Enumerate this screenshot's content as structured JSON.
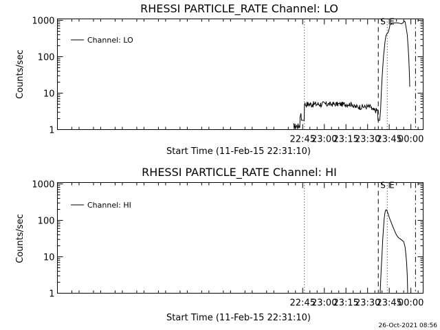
{
  "footer": {
    "timestamp": "26-Oct-2021 08:56"
  },
  "chart_data": [
    {
      "type": "line",
      "title": "RHESSI PARTICLE_RATE Channel: LO",
      "xlabel": "Start Time (11-Feb-15 22:31:10)",
      "ylabel": "Counts/sec",
      "yscale": "log",
      "ylim": [
        1,
        1000
      ],
      "xlim_minutes": [
        -245,
        8.5
      ],
      "x_ticks": [
        {
          "m": -75,
          "label": "22:45"
        },
        {
          "m": -60,
          "label": "23:00"
        },
        {
          "m": -45,
          "label": "23:15"
        },
        {
          "m": -30,
          "label": "23:30"
        },
        {
          "m": -15,
          "label": "23:45"
        },
        {
          "m": 0,
          "label": "00:00"
        }
      ],
      "y_ticks": [
        {
          "v": 1,
          "label": "1"
        },
        {
          "v": 10,
          "label": "10"
        },
        {
          "v": 100,
          "label": "100"
        },
        {
          "v": 1000,
          "label": "1000"
        }
      ],
      "legend": {
        "position": "top-left",
        "label": "Channel: LO"
      },
      "markers": [
        {
          "m": -73.8,
          "style": "dotted",
          "label": ""
        },
        {
          "m": -22.6,
          "style": "dashed",
          "label": "S"
        },
        {
          "m": -16.4,
          "style": "dotted",
          "label": "E"
        },
        {
          "m": 3.2,
          "style": "dashdot",
          "label": ""
        }
      ],
      "series": [
        {
          "name": "Channel: LO",
          "noise_segments": [
            {
              "from": -81.5,
              "to": -76.8,
              "vmin": 1,
              "vmax": 1.5,
              "step": 0.3
            },
            {
              "from": -73.8,
              "to": -58,
              "vmin": 4,
              "vmax": 6,
              "step": 0.35
            },
            {
              "from": -58,
              "to": -40,
              "vmin": 4.2,
              "vmax": 5.8,
              "step": 0.35
            },
            {
              "from": -40,
              "to": -27.2,
              "vmin": 3.5,
              "vmax": 5,
              "step": 0.35
            },
            {
              "from": -27.2,
              "to": -23,
              "vmin": 2.8,
              "vmax": 4,
              "step": 0.35
            }
          ],
          "points": [
            [
              -76.8,
              2.2
            ],
            [
              -76.2,
              2.8
            ],
            [
              -75.8,
              1.8
            ],
            [
              -74,
              1.8
            ],
            [
              -73.8,
              4.5
            ],
            [
              -23,
              3
            ],
            [
              -22.8,
              1.8
            ],
            [
              -21.6,
              1.8
            ],
            [
              -21,
              3.5
            ],
            [
              -20.5,
              10
            ],
            [
              -20,
              25
            ],
            [
              -19.5,
              50
            ],
            [
              -19,
              100
            ],
            [
              -18.5,
              150
            ],
            [
              -18,
              250
            ],
            [
              -17.3,
              380
            ],
            [
              -16.5,
              430
            ],
            [
              -16,
              450
            ],
            [
              -15.5,
              500
            ],
            [
              -15,
              600
            ],
            [
              -14.5,
              750
            ],
            [
              -13,
              850
            ],
            [
              -9,
              850
            ],
            [
              -6.5,
              800
            ],
            [
              -5.5,
              850
            ],
            [
              -4.5,
              950
            ],
            [
              -4,
              900
            ],
            [
              -3.5,
              700
            ],
            [
              -2.5,
              400
            ],
            [
              -2,
              200
            ],
            [
              -1.5,
              100
            ],
            [
              -1,
              30
            ],
            [
              -0.8,
              15
            ]
          ]
        }
      ]
    },
    {
      "type": "line",
      "title": "RHESSI PARTICLE_RATE Channel: HI",
      "xlabel": "Start Time (11-Feb-15 22:31:10)",
      "ylabel": "Counts/sec",
      "yscale": "log",
      "ylim": [
        1,
        1000
      ],
      "xlim_minutes": [
        -245,
        8.5
      ],
      "x_ticks": [
        {
          "m": -75,
          "label": "22:45"
        },
        {
          "m": -60,
          "label": "23:00"
        },
        {
          "m": -45,
          "label": "23:15"
        },
        {
          "m": -30,
          "label": "23:30"
        },
        {
          "m": -15,
          "label": "23:45"
        },
        {
          "m": 0,
          "label": "00:00"
        }
      ],
      "y_ticks": [
        {
          "v": 1,
          "label": "1"
        },
        {
          "v": 10,
          "label": "10"
        },
        {
          "v": 100,
          "label": "100"
        },
        {
          "v": 1000,
          "label": "1000"
        }
      ],
      "legend": {
        "position": "top-left",
        "label": "Channel: HI"
      },
      "markers": [
        {
          "m": -73.8,
          "style": "dotted",
          "label": ""
        },
        {
          "m": -22.6,
          "style": "dashed",
          "label": "S"
        },
        {
          "m": -16.4,
          "style": "dotted",
          "label": "E"
        },
        {
          "m": 3.2,
          "style": "dashdot",
          "label": ""
        }
      ],
      "series": [
        {
          "name": "Channel: HI",
          "points": [
            [
              -21.3,
              1
            ],
            [
              -21,
              2
            ],
            [
              -20.5,
              5
            ],
            [
              -20,
              12
            ],
            [
              -19.5,
              30
            ],
            [
              -19,
              60
            ],
            [
              -18.5,
              110
            ],
            [
              -18,
              160
            ],
            [
              -17.5,
              190
            ],
            [
              -17,
              195
            ],
            [
              -16.5,
              180
            ],
            [
              -16,
              160
            ],
            [
              -15,
              120
            ],
            [
              -14,
              95
            ],
            [
              -13,
              75
            ],
            [
              -12,
              60
            ],
            [
              -11,
              48
            ],
            [
              -10,
              40
            ],
            [
              -9,
              35
            ],
            [
              -8,
              32
            ],
            [
              -7,
              30
            ],
            [
              -6,
              28
            ],
            [
              -5,
              26
            ],
            [
              -4.5,
              22
            ],
            [
              -4,
              18
            ],
            [
              -3.5,
              12
            ],
            [
              -3,
              7
            ],
            [
              -2.5,
              3
            ],
            [
              -2.2,
              1
            ]
          ]
        }
      ]
    }
  ]
}
